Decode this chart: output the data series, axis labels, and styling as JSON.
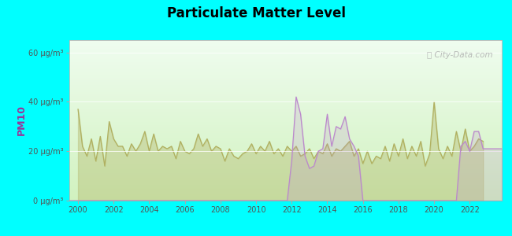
{
  "title": "Particulate Matter Level",
  "ylabel": "PM10",
  "background_color": "#00FFFF",
  "willard_color": "#bb88cc",
  "us_color": "#b0b060",
  "ylim": [
    0,
    65
  ],
  "yticks": [
    0,
    20,
    40,
    60
  ],
  "ytick_labels": [
    "0 μg/m³",
    "20 μg/m³",
    "40 μg/m³",
    "60 μg/m³"
  ],
  "xlim_start": 1999.5,
  "xlim_end": 2023.8,
  "xticks": [
    2000,
    2002,
    2004,
    2006,
    2008,
    2010,
    2012,
    2014,
    2016,
    2018,
    2020,
    2022
  ],
  "watermark": "ⓘ City-Data.com",
  "us_x": [
    2000.0,
    2000.25,
    2000.5,
    2000.75,
    2001.0,
    2001.25,
    2001.5,
    2001.75,
    2002.0,
    2002.25,
    2002.5,
    2002.75,
    2003.0,
    2003.25,
    2003.5,
    2003.75,
    2004.0,
    2004.25,
    2004.5,
    2004.75,
    2005.0,
    2005.25,
    2005.5,
    2005.75,
    2006.0,
    2006.25,
    2006.5,
    2006.75,
    2007.0,
    2007.25,
    2007.5,
    2007.75,
    2008.0,
    2008.25,
    2008.5,
    2008.75,
    2009.0,
    2009.25,
    2009.5,
    2009.75,
    2010.0,
    2010.25,
    2010.5,
    2010.75,
    2011.0,
    2011.25,
    2011.5,
    2011.75,
    2012.0,
    2012.25,
    2012.5,
    2012.75,
    2013.0,
    2013.25,
    2013.5,
    2013.75,
    2014.0,
    2014.25,
    2014.5,
    2014.75,
    2015.0,
    2015.25,
    2015.5,
    2015.75,
    2016.0,
    2016.25,
    2016.5,
    2016.75,
    2017.0,
    2017.25,
    2017.5,
    2017.75,
    2018.0,
    2018.25,
    2018.5,
    2018.75,
    2019.0,
    2019.25,
    2019.5,
    2019.75,
    2020.0,
    2020.25,
    2020.5,
    2020.75,
    2021.0,
    2021.25,
    2021.5,
    2021.75,
    2022.0,
    2022.25,
    2022.5,
    2022.75
  ],
  "us_y": [
    37,
    22,
    18,
    25,
    16,
    26,
    14,
    32,
    25,
    22,
    22,
    18,
    23,
    20,
    23,
    28,
    20,
    27,
    20,
    22,
    21,
    22,
    17,
    24,
    20,
    19,
    21,
    27,
    22,
    25,
    20,
    22,
    21,
    16,
    21,
    18,
    17,
    19,
    20,
    23,
    19,
    22,
    20,
    24,
    19,
    21,
    18,
    22,
    20,
    22,
    18,
    19,
    21,
    17,
    20,
    19,
    23,
    18,
    21,
    20,
    22,
    24,
    18,
    21,
    15,
    20,
    15,
    18,
    17,
    22,
    16,
    23,
    18,
    25,
    17,
    22,
    18,
    24,
    14,
    19,
    40,
    21,
    17,
    22,
    18,
    28,
    20,
    29,
    20,
    22,
    25,
    24
  ],
  "willard_x": [
    1999.5,
    2011.5,
    2011.75,
    2012.0,
    2012.25,
    2012.5,
    2012.75,
    2013.0,
    2013.25,
    2013.5,
    2013.75,
    2014.0,
    2014.25,
    2014.5,
    2014.75,
    2015.0,
    2015.25,
    2015.5,
    2015.75,
    2016.0,
    2016.25,
    2021.0,
    2021.25,
    2021.5,
    2021.75,
    2022.0,
    2022.25,
    2022.5,
    2022.75,
    2023.8
  ],
  "willard_y": [
    0,
    0,
    0,
    16,
    42,
    35,
    18,
    13,
    14,
    20,
    21,
    35,
    22,
    30,
    29,
    34,
    25,
    22,
    18,
    0,
    0,
    0,
    0,
    22,
    24,
    20,
    28,
    28,
    21,
    21
  ]
}
